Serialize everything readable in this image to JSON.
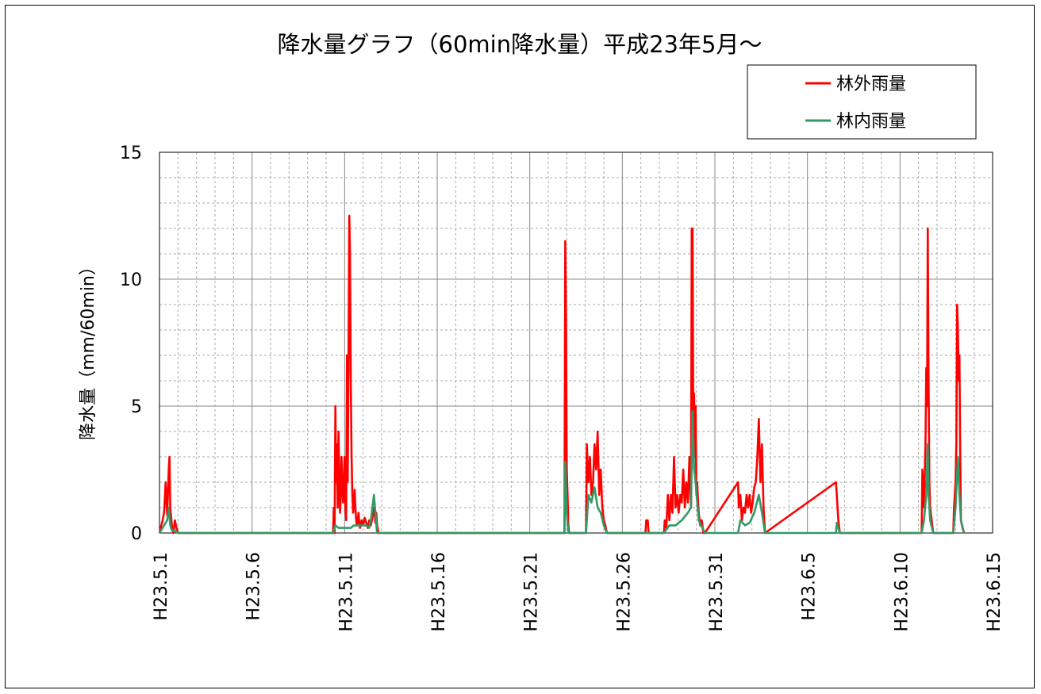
{
  "chart_data": {
    "type": "line",
    "title": "降水量グラフ（60min降水量）平成23年5月～",
    "xlabel": "",
    "ylabel": "降水量（mm/60min）",
    "ylim": [
      0,
      15
    ],
    "yticks": [
      "0",
      "5",
      "10",
      "15"
    ],
    "xlim_days": [
      0,
      45
    ],
    "xticks": [
      "H23.5.1",
      "H23.5.6",
      "H23.5.11",
      "H23.5.16",
      "H23.5.21",
      "H23.5.26",
      "H23.5.31",
      "H23.6.5",
      "H23.6.10",
      "H23.6.15"
    ],
    "grid": true,
    "legend_position": "top-right",
    "series": [
      {
        "name": "林外雨量",
        "color": "#ff0000",
        "x": [
          "H23.5.1",
          "H23.5.1 04:00",
          "H23.5.1 06:00",
          "H23.5.1 08:00",
          "H23.5.1 10:00",
          "H23.5.1 12:00",
          "H23.5.1 13:00",
          "H23.5.1 14:00",
          "H23.5.1 16:00",
          "H23.5.1 18:00",
          "H23.5.1 20:00",
          "H23.5.1 22:00",
          "H23.5.2",
          "H23.5.10 09:00",
          "H23.5.10 10:00",
          "H23.5.10 11:00",
          "H23.5.10 12:00",
          "H23.5.10 13:00",
          "H23.5.10 14:00",
          "H23.5.10 15:00",
          "H23.5.10 16:00",
          "H23.5.10 17:00",
          "H23.5.10 18:00",
          "H23.5.10 19:00",
          "H23.5.10 20:00",
          "H23.5.10 21:00",
          "H23.5.10 22:00",
          "H23.5.10 23:00",
          "H23.5.11",
          "H23.5.11 01:00",
          "H23.5.11 02:00",
          "H23.5.11 03:00",
          "H23.5.11 04:00",
          "H23.5.11 05:00",
          "H23.5.11 06:00",
          "H23.5.11 07:00",
          "H23.5.11 08:00",
          "H23.5.11 09:00",
          "H23.5.11 10:00",
          "H23.5.11 11:00",
          "H23.5.11 12:00",
          "H23.5.11 13:00",
          "H23.5.11 14:00",
          "H23.5.11 15:00",
          "H23.5.11 16:00",
          "H23.5.11 17:00",
          "H23.5.11 18:00",
          "H23.5.11 19:00",
          "H23.5.11 20:00",
          "H23.5.11 22:00",
          "H23.5.12",
          "H23.5.12 02:00",
          "H23.5.12 04:00",
          "H23.5.12 06:00",
          "H23.5.12 08:00",
          "H23.5.12 10:00",
          "H23.5.12 12:00",
          "H23.5.12 14:00",
          "H23.5.12 16:00",
          "H23.5.12 17:00",
          "H23.5.12 18:00",
          "H23.5.12 20:00",
          "H23.5.22 21:00",
          "H23.5.22 22:00",
          "H23.5.22 23:00",
          "H23.5.23",
          "H23.5.23 01:00",
          "H23.5.23 02:00",
          "H23.5.23 03:00",
          "H23.5.24 01:00",
          "H23.5.24 02:00",
          "H23.5.24 04:00",
          "H23.5.24 06:00",
          "H23.5.24 08:00",
          "H23.5.24 10:00",
          "H23.5.24 12:00",
          "H23.5.24 14:00",
          "H23.5.24 16:00",
          "H23.5.24 18:00",
          "H23.5.24 20:00",
          "H23.5.24 22:00",
          "H23.5.25",
          "H23.5.25 02:00",
          "H23.5.25 04:00",
          "H23.5.27 06:00",
          "H23.5.27 07:00",
          "H23.5.27 09:00",
          "H23.5.27 10:00",
          "H23.5.28 06:00",
          "H23.5.28 07:00",
          "H23.5.28 09:00",
          "H23.5.28 11:00",
          "H23.5.28 13:00",
          "H23.5.28 15:00",
          "H23.5.28 17:00",
          "H23.5.28 19:00",
          "H23.5.28 21:00",
          "H23.5.28 23:00",
          "H23.5.29 01:00",
          "H23.5.29 03:00",
          "H23.5.29 05:00",
          "H23.5.29 07:00",
          "H23.5.29 09:00",
          "H23.5.29 11:00",
          "H23.5.29 13:00",
          "H23.5.29 15:00",
          "H23.5.29 17:00",
          "H23.5.29 18:00",
          "H23.5.29 19:00",
          "H23.5.29 20:00",
          "H23.5.29 21:00",
          "H23.5.29 22:00",
          "H23.5.29 23:00",
          "H23.5.30",
          "H23.5.30 01:00",
          "H23.5.30 03:00",
          "H23.5.30 05:00",
          "H23.5.30 07:00",
          "H23.5.30 09:00",
          "H23.5.30 11:00",
          "H23.6.1 06:00",
          "H23.6.1 07:00",
          "H23.6.1 09:00",
          "H23.6.1 11:00",
          "H23.6.1 13:00",
          "H23.6.1 15:00",
          "H23.6.1 17:00",
          "H23.6.1 19:00",
          "H23.6.1 21:00",
          "H23.6.1 23:00",
          "H23.6.2 01:00",
          "H23.6.2 03:00",
          "H23.6.2 05:00",
          "H23.6.2 07:00",
          "H23.6.2 09:00",
          "H23.6.2 11:00",
          "H23.6.2 13:00",
          "H23.6.2 15:00",
          "H23.6.2 17:00",
          "H23.6.6 13:00",
          "H23.6.6 14:00",
          "H23.6.6 16:00",
          "H23.6.6 18:00",
          "H23.6.11 04:00",
          "H23.6.11 05:00",
          "H23.6.11 07:00",
          "H23.6.11 09:00",
          "H23.6.11 10:00",
          "H23.6.11 11:00",
          "H23.6.11 12:00",
          "H23.6.11 13:00",
          "H23.6.11 14:00",
          "H23.6.11 15:00",
          "H23.6.11 17:00",
          "H23.6.11 19:00",
          "H23.6.12 21:00",
          "H23.6.12 22:00",
          "H23.6.13",
          "H23.6.13 01:00",
          "H23.6.13 02:00",
          "H23.6.13 03:00",
          "H23.6.13 04:00",
          "H23.6.13 05:00",
          "H23.6.13 06:00",
          "H23.6.13 07:00",
          "H23.6.13 09:00",
          "H23.6.13 11:00"
        ],
        "y": [
          0,
          0.5,
          0.8,
          2.0,
          0.7,
          2.5,
          3.0,
          1.0,
          0.3,
          0,
          0.5,
          0.2,
          0,
          0,
          1.0,
          0,
          5.0,
          2.0,
          3.5,
          1.0,
          4.0,
          2.5,
          0.8,
          1.5,
          3.0,
          2.0,
          1.2,
          2.0,
          3.0,
          1.0,
          0.5,
          7.0,
          2.0,
          6.5,
          12.5,
          11.0,
          6.0,
          3.0,
          1.5,
          0.8,
          1.2,
          1.7,
          1.0,
          0.5,
          0.3,
          0.5,
          0.8,
          0.4,
          0.2,
          0.5,
          0.3,
          0.6,
          0.4,
          0.2,
          0.5,
          0.3,
          0.6,
          1.0,
          0.4,
          0.8,
          0.3,
          0,
          0,
          11.5,
          8.5,
          2.5,
          1.5,
          0.3,
          0,
          0,
          3.5,
          2.0,
          3.0,
          1.5,
          2.0,
          3.5,
          2.5,
          4.0,
          1.5,
          2.5,
          1.0,
          0.5,
          0.3,
          0,
          0,
          0.5,
          0.5,
          0,
          0,
          0.5,
          0.2,
          1.5,
          0.5,
          1.5,
          0.8,
          3.0,
          1.0,
          1.5,
          0.8,
          1.5,
          1.2,
          2.5,
          1.0,
          2.0,
          1.2,
          3.0,
          1.0,
          12.0,
          12.0,
          4.0,
          5.5,
          3.0,
          5.0,
          1.5,
          2.0,
          0.8,
          0.3,
          0.5,
          0,
          0,
          2.0,
          1.0,
          1.5,
          0.5,
          1.0,
          0.8,
          1.5,
          1.0,
          1.5,
          0.8,
          1.2,
          1.8,
          2.0,
          3.0,
          4.5,
          2.0,
          3.5,
          1.0,
          0,
          2.0,
          1.5,
          0.5,
          0,
          0,
          2.5,
          1.0,
          3.5,
          6.5,
          5.0,
          12.0,
          6.0,
          2.0,
          1.0,
          0.5,
          0,
          0,
          1.0,
          2.0,
          3.5,
          9.0,
          8.0,
          6.0,
          7.0,
          3.0,
          0.5,
          0.2,
          0
        ]
      },
      {
        "name": "林内雨量",
        "color": "#339966",
        "x": [
          "H23.5.1",
          "H23.5.1 06:00",
          "H23.5.1 10:00",
          "H23.5.1 12:00",
          "H23.5.1 14:00",
          "H23.5.1 16:00",
          "H23.5.1 20:00",
          "H23.5.2",
          "H23.5.10 09:00",
          "H23.5.10 12:00",
          "H23.5.10 16:00",
          "H23.5.11 04:00",
          "H23.5.11 08:00",
          "H23.5.11 12:00",
          "H23.5.12 04:00",
          "H23.5.12 08:00",
          "H23.5.12 10:00",
          "H23.5.12 14:00",
          "H23.5.12 18:00",
          "H23.5.22 21:00",
          "H23.5.22 22:00",
          "H23.5.23",
          "H23.5.23 02:00",
          "H23.5.24 01:00",
          "H23.5.24 04:00",
          "H23.5.24 08:00",
          "H23.5.24 12:00",
          "H23.5.24 16:00",
          "H23.5.24 20:00",
          "H23.5.25",
          "H23.5.25 04:00",
          "H23.5.28 06:00",
          "H23.5.28 13:00",
          "H23.5.28 21:00",
          "H23.5.29 05:00",
          "H23.5.29 13:00",
          "H23.5.29 17:00",
          "H23.5.29 19:00",
          "H23.5.29 21:00",
          "H23.5.29 23:00",
          "H23.5.30 03:00",
          "H23.5.30 11:00",
          "H23.6.1 06:00",
          "H23.6.1 09:00",
          "H23.6.1 15:00",
          "H23.6.1 21:00",
          "H23.6.2 03:00",
          "H23.6.2 09:00",
          "H23.6.2 13:00",
          "H23.6.2 17:00",
          "H23.6.6 13:00",
          "H23.6.6 14:00",
          "H23.6.6 18:00",
          "H23.6.11 04:00",
          "H23.6.11 07:00",
          "H23.6.11 10:00",
          "H23.6.11 12:00",
          "H23.6.11 13:00",
          "H23.6.11 15:00",
          "H23.6.11 19:00",
          "H23.6.12 21:00",
          "H23.6.13",
          "H23.6.13 03:00",
          "H23.6.13 05:00",
          "H23.6.13 07:00",
          "H23.6.13 11:00"
        ],
        "y": [
          0,
          0.3,
          0.5,
          1.0,
          0.3,
          0.1,
          0.1,
          0,
          0,
          0.3,
          0.2,
          0.2,
          0.2,
          0.3,
          0.3,
          0.2,
          0.5,
          1.5,
          0,
          0,
          2.8,
          0.8,
          0,
          0,
          1.5,
          1.2,
          1.8,
          1.0,
          0.8,
          0.3,
          0,
          0,
          0.3,
          0.3,
          0.5,
          0.8,
          1.0,
          4.8,
          2.5,
          2.0,
          0.5,
          0,
          0,
          0.5,
          0.3,
          0.4,
          0.8,
          1.5,
          0.8,
          0,
          0,
          0.4,
          0,
          0,
          0.5,
          1.5,
          3.5,
          1.5,
          0.5,
          0,
          0,
          1.0,
          3.0,
          1.5,
          0.5,
          0
        ]
      }
    ]
  }
}
